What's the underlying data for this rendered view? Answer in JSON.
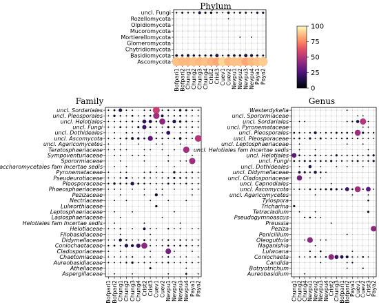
{
  "colorbar": {
    "ticks": [
      0,
      25,
      50,
      75,
      100
    ],
    "min": 0,
    "max": 100,
    "colormap": "magma"
  },
  "chart_data": [
    {
      "type": "scatter",
      "title": "Phylum",
      "italic_labels": false,
      "x": [
        "Bofpari1",
        "Bofpari2",
        "Chung1",
        "Chung2",
        "Chung3",
        "Chung4",
        "Crist2",
        "Crist3",
        "Cuev1",
        "Cuev2",
        "Nevpu1",
        "Nevpu2",
        "Nevpu3",
        "Nevpu4",
        "Paya1",
        "Paya2"
      ],
      "y": [
        "uncl. Fungi",
        "Rozellomycota",
        "Olpidiomycota",
        "Mucoromycota",
        "Mortierellomycota",
        "Glomeromycota",
        "Chytridiomycota",
        "Basidiomycota",
        "Ascomycota"
      ],
      "values": [
        [
          3,
          4,
          3,
          3,
          8,
          5,
          6,
          3,
          2,
          6,
          3,
          4,
          4,
          3,
          5,
          5
        ],
        [
          0,
          0,
          0,
          0,
          0,
          0,
          0,
          0,
          0,
          1,
          0,
          0,
          0,
          0,
          0,
          0
        ],
        [
          0,
          0,
          0,
          0,
          0,
          0,
          0,
          0,
          0,
          0,
          0,
          0,
          0,
          0,
          0,
          0
        ],
        [
          0,
          0,
          0,
          0,
          0,
          0,
          0,
          0,
          0,
          0,
          0,
          0,
          0,
          0,
          0,
          0
        ],
        [
          0,
          0,
          0,
          0,
          0,
          0,
          0,
          0,
          0,
          0,
          0,
          1,
          0,
          1,
          0,
          0
        ],
        [
          0,
          0,
          0,
          0,
          0,
          0,
          0,
          0,
          0,
          0,
          0,
          0,
          0,
          0,
          0,
          0
        ],
        [
          0,
          0,
          0,
          0,
          0,
          0,
          0,
          0,
          0,
          0,
          0,
          0,
          0,
          0,
          0,
          0
        ],
        [
          7,
          6,
          8,
          6,
          4,
          5,
          6,
          12,
          3,
          6,
          7,
          6,
          12,
          9,
          5,
          4
        ],
        [
          88,
          86,
          86,
          88,
          86,
          88,
          85,
          82,
          92,
          86,
          88,
          88,
          82,
          86,
          88,
          90
        ]
      ]
    },
    {
      "type": "scatter",
      "title": "Family",
      "italic_labels": true,
      "x": [
        "Bofpari1",
        "Bofpari2",
        "Chung1",
        "Chung2",
        "Chung3",
        "Chung4",
        "Crist2",
        "Crist3",
        "Cuev1",
        "Cuev2",
        "Nevpu1",
        "Nevpu2",
        "Nevpu3",
        "Nevpu4",
        "Paya1",
        "Paya2"
      ],
      "y": [
        "uncl. Sordariales",
        "uncl. Pleosporales",
        "uncl. Helotiales",
        "uncl. Fungi",
        "uncl. Dothideales",
        "uncl. Ascomycota",
        "uncl. Agaricomycetes",
        "Teratosphaeriaceae",
        "Sympoventuriaceae",
        "Sporormiaceae",
        "Saccharomycetales fam Incertae sedis",
        "Pyronemataceae",
        "Pseudeurotiaceae",
        "Pleosporaceae",
        "Phaeosphaeriaceae",
        "Pezizaceae",
        "Nectriaceae",
        "Lulworthiaceae",
        "Leptosphaeriaceae",
        "Lasiosphaeriaceae",
        "Helotiales fam Incertae sedis",
        "Helotiaceae",
        "Filobasidiaceae",
        "Didymellaceae",
        "Coniochaetaceae",
        "Cladosporiaceae",
        "Chaetomiaceae",
        "Aureobasidiaceae",
        "Atheliaceae",
        "Aspergillaceae"
      ],
      "values": [
        [
          2,
          4,
          14,
          2,
          1,
          0,
          2,
          2,
          55,
          2,
          3,
          2,
          6,
          4,
          2,
          1
        ],
        [
          1,
          6,
          3,
          2,
          4,
          2,
          3,
          4,
          45,
          8,
          2,
          3,
          4,
          2,
          1,
          1
        ],
        [
          1,
          1,
          2,
          1,
          3,
          1,
          18,
          12,
          3,
          40,
          2,
          14,
          6,
          3,
          1,
          1
        ],
        [
          2,
          2,
          4,
          2,
          1,
          5,
          20,
          4,
          2,
          2,
          5,
          3,
          3,
          1,
          3,
          2
        ],
        [
          0,
          1,
          0,
          2,
          1,
          1,
          0,
          0,
          2,
          1,
          18,
          0,
          2,
          1,
          1,
          0
        ],
        [
          2,
          2,
          3,
          4,
          8,
          6,
          4,
          28,
          3,
          3,
          2,
          3,
          7,
          2,
          2,
          50
        ],
        [
          1,
          0,
          1,
          0,
          0,
          1,
          0,
          0,
          1,
          2,
          0,
          0,
          1,
          0,
          0,
          0
        ],
        [
          1,
          1,
          2,
          1,
          0,
          0,
          1,
          1,
          0,
          1,
          0,
          2,
          0,
          45,
          0,
          1
        ],
        [
          0,
          1,
          1,
          0,
          2,
          1,
          1,
          0,
          0,
          0,
          1,
          0,
          0,
          0,
          1,
          0
        ],
        [
          0,
          0,
          1,
          0,
          0,
          0,
          1,
          0,
          0,
          0,
          2,
          0,
          1,
          1,
          44,
          0
        ],
        [
          0,
          1,
          0,
          1,
          0,
          0,
          0,
          0,
          1,
          0,
          0,
          1,
          0,
          0,
          0,
          0
        ],
        [
          1,
          0,
          1,
          2,
          0,
          0,
          1,
          3,
          2,
          1,
          0,
          6,
          2,
          1,
          3,
          1
        ],
        [
          2,
          1,
          3,
          5,
          1,
          1,
          3,
          2,
          1,
          2,
          3,
          5,
          4,
          3,
          2,
          1
        ],
        [
          3,
          6,
          4,
          3,
          15,
          4,
          3,
          2,
          2,
          1,
          4,
          3,
          2,
          3,
          1,
          2
        ],
        [
          1,
          2,
          1,
          0,
          1,
          0,
          1,
          0,
          1,
          2,
          0,
          1,
          0,
          0,
          2,
          1
        ],
        [
          0,
          0,
          1,
          0,
          0,
          0,
          1,
          0,
          10,
          1,
          0,
          0,
          0,
          0,
          1,
          0
        ],
        [
          0,
          1,
          0,
          1,
          0,
          0,
          0,
          1,
          0,
          0,
          1,
          0,
          0,
          1,
          0,
          0
        ],
        [
          0,
          0,
          0,
          0,
          0,
          0,
          0,
          0,
          6,
          0,
          0,
          0,
          0,
          0,
          0,
          0
        ],
        [
          0,
          1,
          0,
          0,
          1,
          0,
          0,
          0,
          0,
          0,
          0,
          1,
          0,
          0,
          0,
          0
        ],
        [
          0,
          0,
          1,
          0,
          0,
          0,
          0,
          0,
          0,
          1,
          0,
          0,
          0,
          0,
          0,
          0
        ],
        [
          0,
          1,
          0,
          0,
          0,
          0,
          1,
          0,
          0,
          0,
          0,
          0,
          1,
          0,
          0,
          0
        ],
        [
          2,
          1,
          3,
          0,
          1,
          0,
          8,
          2,
          1,
          0,
          3,
          1,
          2,
          0,
          1,
          1
        ],
        [
          0,
          0,
          1,
          0,
          0,
          0,
          0,
          1,
          0,
          0,
          0,
          0,
          0,
          0,
          0,
          0
        ],
        [
          1,
          2,
          10,
          3,
          1,
          2,
          4,
          1,
          2,
          1,
          3,
          2,
          3,
          1,
          2,
          1
        ],
        [
          3,
          4,
          2,
          15,
          10,
          20,
          40,
          2,
          1,
          2,
          4,
          3,
          4,
          3,
          2,
          2
        ],
        [
          1,
          0,
          1,
          0,
          0,
          0,
          0,
          1,
          0,
          0,
          35,
          1,
          0,
          0,
          1,
          0
        ],
        [
          1,
          1,
          2,
          1,
          3,
          0,
          1,
          2,
          0,
          1,
          3,
          1,
          1,
          1,
          0,
          1
        ],
        [
          2,
          1,
          2,
          3,
          6,
          1,
          2,
          1,
          1,
          2,
          3,
          1,
          2,
          1,
          2,
          1
        ],
        [
          0,
          0,
          0,
          0,
          0,
          0,
          0,
          5,
          0,
          0,
          0,
          0,
          0,
          1,
          0,
          0
        ],
        [
          0,
          1,
          0,
          0,
          1,
          0,
          0,
          0,
          0,
          0,
          1,
          0,
          0,
          4,
          0,
          1
        ]
      ]
    },
    {
      "type": "scatter",
      "title": "Genus",
      "italic_labels": true,
      "x": [
        "Chung1",
        "Chung2",
        "Chung4",
        "Nevpu1",
        "Nevpu2",
        "Nevpu3",
        "Nevpu4",
        "Crist2",
        "Chung3",
        "Bofpari1",
        "Bofpari2",
        "Paya1",
        "Cuev1",
        "Cuev2",
        "Crist3",
        "Paya2"
      ],
      "y": [
        "Westerdykella",
        "uncl. Sporormiaceae",
        "uncl. Sordariales",
        "uncl. Pyronemataceae",
        "uncl. Pleosporales",
        "uncl. Pleosporaceae",
        "uncl. Leptosphaeriaceae",
        "uncl. Helotiales fam Incertae sedis",
        "uncl. Helotiales",
        "uncl. Fungi",
        "uncl. Dothideales",
        "uncl. Didymellaceae",
        "uncl. Cladosporiaceae",
        "uncl. Capnodiales",
        "uncl. Ascomycota",
        "uncl. Agaricomycetes",
        "Tylospora",
        "Tricharina",
        "Tetracladium",
        "Pseudogymnoascus",
        "Preussia",
        "Peziza",
        "Penicillium",
        "Oleoguttula",
        "Naganishia",
        "Lulwoana",
        "Coniochaeta",
        "Candida",
        "Botryotrichum",
        "Aureobasidium"
      ],
      "values": [
        [
          0,
          0,
          0,
          0,
          0,
          0,
          0,
          0,
          0,
          0,
          1,
          0,
          0,
          0,
          0,
          0
        ],
        [
          0,
          0,
          0,
          0,
          0,
          0,
          0,
          0,
          0,
          0,
          0,
          0,
          1,
          2,
          0,
          0
        ],
        [
          0,
          1,
          2,
          0,
          0,
          0,
          0,
          0,
          0,
          0,
          2,
          3,
          12,
          50,
          2,
          0
        ],
        [
          0,
          0,
          0,
          0,
          0,
          0,
          0,
          0,
          0,
          0,
          0,
          0,
          0,
          2,
          1,
          0
        ],
        [
          4,
          3,
          2,
          3,
          10,
          2,
          3,
          3,
          5,
          3,
          4,
          2,
          45,
          6,
          2,
          3
        ],
        [
          3,
          4,
          1,
          6,
          2,
          5,
          2,
          3,
          2,
          3,
          4,
          2,
          3,
          2,
          1,
          2
        ],
        [
          0,
          1,
          0,
          0,
          0,
          0,
          0,
          0,
          0,
          0,
          1,
          0,
          0,
          1,
          0,
          0
        ],
        [
          0,
          1,
          0,
          0,
          1,
          0,
          0,
          0,
          0,
          0,
          0,
          0,
          0,
          0,
          1,
          0
        ],
        [
          28,
          4,
          1,
          2,
          4,
          2,
          2,
          3,
          6,
          2,
          3,
          2,
          3,
          2,
          4,
          6
        ],
        [
          4,
          3,
          5,
          4,
          3,
          4,
          3,
          6,
          2,
          3,
          2,
          3,
          5,
          2,
          3,
          6
        ],
        [
          0,
          1,
          0,
          12,
          0,
          2,
          0,
          0,
          1,
          0,
          1,
          0,
          0,
          1,
          0,
          0
        ],
        [
          0,
          8,
          6,
          3,
          12,
          4,
          2,
          0,
          0,
          0,
          0,
          0,
          0,
          0,
          0,
          0
        ],
        [
          0,
          35,
          0,
          2,
          0,
          1,
          0,
          0,
          0,
          0,
          0,
          0,
          0,
          0,
          0,
          0
        ],
        [
          0,
          0,
          0,
          0,
          0,
          0,
          0,
          2,
          0,
          0,
          0,
          0,
          0,
          0,
          0,
          0
        ],
        [
          2,
          3,
          2,
          4,
          3,
          4,
          5,
          7,
          6,
          3,
          20,
          4,
          45,
          3,
          28,
          2
        ],
        [
          0,
          0,
          0,
          0,
          1,
          0,
          0,
          0,
          0,
          0,
          0,
          1,
          0,
          0,
          1,
          0
        ],
        [
          0,
          0,
          0,
          0,
          0,
          0,
          0,
          0,
          0,
          0,
          0,
          0,
          0,
          0,
          4,
          0
        ],
        [
          6,
          0,
          0,
          0,
          0,
          0,
          0,
          0,
          0,
          0,
          0,
          0,
          0,
          0,
          0,
          0
        ],
        [
          0,
          1,
          0,
          0,
          2,
          0,
          0,
          0,
          0,
          0,
          0,
          0,
          0,
          0,
          6,
          0
        ],
        [
          0,
          0,
          3,
          4,
          2,
          1,
          0,
          0,
          0,
          0,
          0,
          0,
          0,
          0,
          0,
          0
        ],
        [
          0,
          0,
          0,
          0,
          0,
          0,
          0,
          2,
          0,
          0,
          0,
          0,
          0,
          0,
          0,
          0
        ],
        [
          0,
          0,
          0,
          0,
          0,
          0,
          0,
          0,
          0,
          0,
          0,
          0,
          0,
          0,
          0,
          40
        ],
        [
          0,
          0,
          0,
          0,
          0,
          0,
          0,
          0,
          0,
          0,
          1,
          0,
          0,
          0,
          0,
          0
        ],
        [
          0,
          0,
          1,
          40,
          0,
          2,
          1,
          0,
          0,
          0,
          0,
          0,
          0,
          0,
          0,
          0
        ],
        [
          0,
          0,
          0,
          0,
          1,
          0,
          0,
          0,
          0,
          0,
          0,
          0,
          0,
          0,
          0,
          0
        ],
        [
          0,
          0,
          0,
          3,
          0,
          4,
          0,
          0,
          0,
          0,
          0,
          2,
          0,
          0,
          0,
          0
        ],
        [
          0,
          1,
          2,
          3,
          4,
          2,
          4,
          40,
          20,
          15,
          10,
          3,
          2,
          4,
          2,
          0
        ],
        [
          0,
          0,
          0,
          0,
          0,
          1,
          0,
          0,
          0,
          0,
          2,
          3,
          0,
          0,
          0,
          0
        ],
        [
          0,
          0,
          0,
          0,
          0,
          0,
          0,
          0,
          0,
          0,
          2,
          0,
          0,
          3,
          0,
          0
        ],
        [
          0,
          0,
          2,
          0,
          0,
          0,
          0,
          0,
          0,
          0,
          0,
          0,
          0,
          0,
          0,
          0
        ]
      ]
    }
  ]
}
